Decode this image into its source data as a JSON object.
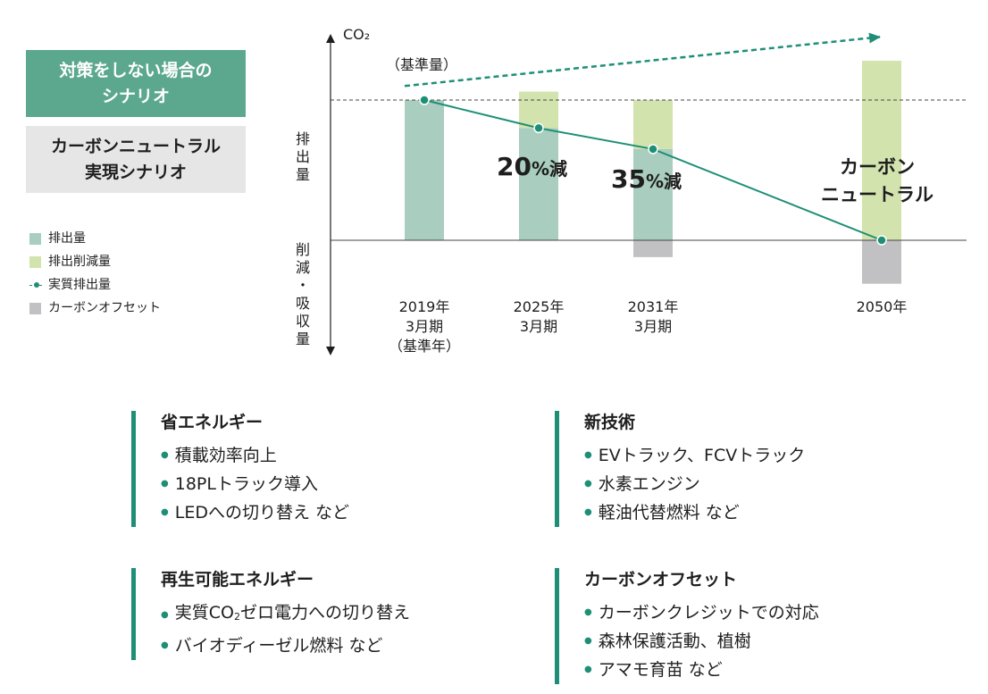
{
  "scenarios": {
    "no_measure": [
      "対策をしない場合の",
      "シナリオ"
    ],
    "carbon_neutral": [
      "カーボンニュートラル",
      "実現シナリオ"
    ]
  },
  "legend": {
    "emission": "排出量",
    "reduction": "排出削減量",
    "actual": "実質排出量",
    "offset": "カーボンオフセット"
  },
  "colors": {
    "emission": "#a9cdbf",
    "reduction": "#d3e3ae",
    "actual": "#1e8f76",
    "offset": "#c1c1c3",
    "box_green": "#5ca88f",
    "box_gray": "#e6e6e6"
  },
  "axis": {
    "co2": "CO₂",
    "baseline_label": "（基準量）",
    "upper": [
      "排",
      "出",
      "量"
    ],
    "lower": [
      "削",
      "減",
      "・",
      "吸",
      "収",
      "量"
    ]
  },
  "chart_data": {
    "type": "bar",
    "title": "",
    "ylabel": "CO₂",
    "ylim": [
      -45,
      120
    ],
    "categories": [
      [
        "2019年",
        "3月期",
        "（基準年）"
      ],
      [
        "2025年",
        "3月期"
      ],
      [
        "2031年",
        "3月期"
      ],
      [
        "2050年"
      ]
    ],
    "series": [
      {
        "name": "排出量",
        "values": [
          100,
          80,
          65,
          0
        ]
      },
      {
        "name": "排出削減量",
        "values": [
          0,
          26,
          35,
          128
        ]
      },
      {
        "name": "カーボンオフセット",
        "values": [
          0,
          0,
          -12,
          -31
        ]
      },
      {
        "name": "実質排出量",
        "values": [
          100,
          80,
          65,
          0
        ]
      }
    ],
    "no_measure_trend": {
      "from": 110,
      "to": 145
    },
    "baseline": 100,
    "annotations": [
      {
        "number": "20",
        "unit": "%減"
      },
      {
        "number": "35",
        "unit": "%減"
      }
    ],
    "carbon_neutral_label": [
      "カーボン",
      "ニュートラル"
    ]
  },
  "sections": {
    "energy_saving": {
      "title": "省エネルギー",
      "items": [
        "積載効率向上",
        "18PLトラック導入",
        "LEDへの切り替え など"
      ]
    },
    "new_tech": {
      "title": "新技術",
      "items": [
        "EVトラック、FCVトラック",
        "水素エンジン",
        "軽油代替燃料 など"
      ]
    },
    "renewable": {
      "title": "再生可能エネルギー",
      "item1": {
        "pre": "実質CO",
        "sub": "2",
        "post": "ゼロ電力への切り替え"
      },
      "item2": "バイオディーゼル燃料 など"
    },
    "offset": {
      "title": "カーボンオフセット",
      "items": [
        "カーボンクレジットでの対応",
        "森林保護活動、植樹",
        "アマモ育苗 など"
      ]
    }
  }
}
